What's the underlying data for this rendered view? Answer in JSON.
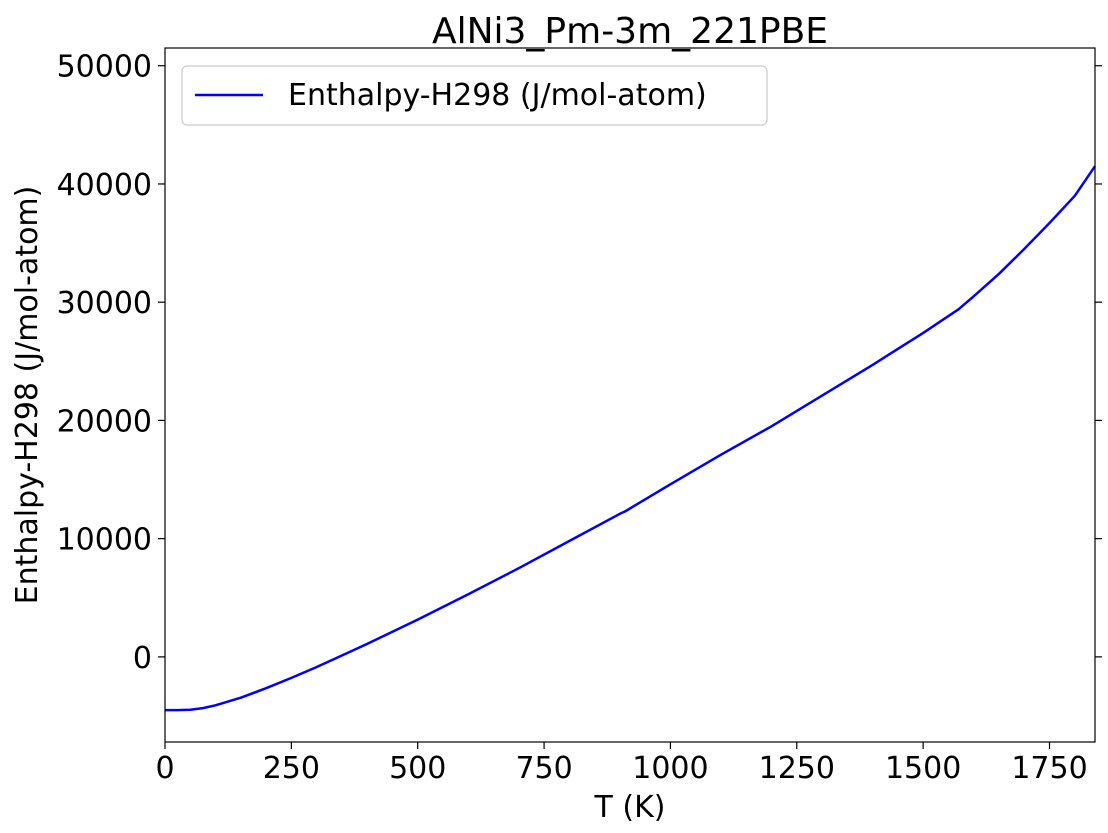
{
  "chart_data": {
    "type": "line",
    "title": "AlNi3_Pm-3m_221PBE",
    "xlabel": "T (K)",
    "ylabel": "Enthalpy-H298 (J/mol-atom)",
    "xlim": [
      0,
      1840
    ],
    "ylim": [
      -7200,
      51500
    ],
    "xticks": [
      0,
      250,
      500,
      750,
      1000,
      1250,
      1500,
      1750
    ],
    "yticks": [
      0,
      10000,
      20000,
      30000,
      40000,
      50000
    ],
    "grid": false,
    "legend_position": "top-left",
    "series": [
      {
        "name": "Enthalpy-H298 (J/mol-atom)",
        "color": "#0000ff",
        "x": [
          0,
          25,
          50,
          75,
          100,
          150,
          200,
          250,
          298,
          350,
          400,
          500,
          600,
          700,
          800,
          900,
          910,
          1000,
          1100,
          1200,
          1300,
          1400,
          1500,
          1570,
          1600,
          1650,
          1700,
          1750,
          1800,
          1840
        ],
        "y": [
          -4500,
          -4500,
          -4470,
          -4330,
          -4100,
          -3450,
          -2650,
          -1780,
          -900,
          120,
          1100,
          3150,
          5300,
          7500,
          9800,
          12100,
          12300,
          14600,
          17100,
          19500,
          22100,
          24700,
          27400,
          29400,
          30500,
          32400,
          34500,
          36700,
          39000,
          41500
        ]
      }
    ]
  }
}
